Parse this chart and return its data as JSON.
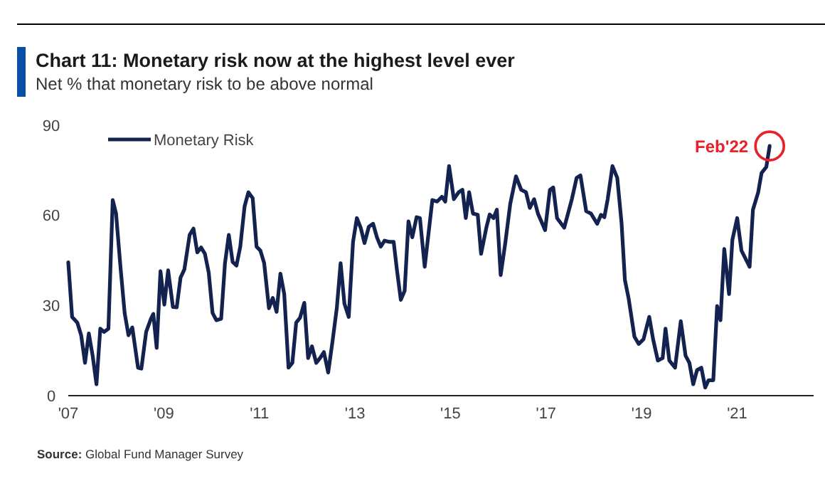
{
  "chart_data": {
    "type": "line",
    "title": "Chart 11: Monetary risk now at the highest level ever",
    "subtitle": "Net % that monetary risk to be above normal",
    "x": [
      2007.0,
      2007.08,
      2007.19,
      2007.27,
      2007.35,
      2007.43,
      2007.51,
      2007.59,
      2007.67,
      2007.75,
      2007.84,
      2007.93,
      2008.0,
      2008.09,
      2008.18,
      2008.26,
      2008.34,
      2008.46,
      2008.53,
      2008.63,
      2008.73,
      2008.78,
      2008.85,
      2008.93,
      2009.01,
      2009.09,
      2009.19,
      2009.27,
      2009.35,
      2009.43,
      2009.54,
      2009.62,
      2009.7,
      2009.78,
      2009.86,
      2009.94,
      2010.02,
      2010.1,
      2010.2,
      2010.28,
      2010.36,
      2010.44,
      2010.52,
      2010.6,
      2010.69,
      2010.77,
      2010.86,
      2010.94,
      2011.02,
      2011.1,
      2011.2,
      2011.28,
      2011.36,
      2011.44,
      2011.52,
      2011.61,
      2011.69,
      2011.77,
      2011.85,
      2011.94,
      2012.02,
      2012.1,
      2012.19,
      2012.27,
      2012.35,
      2012.44,
      2012.53,
      2012.62,
      2012.7,
      2012.78,
      2012.87,
      2012.96,
      2013.04,
      2013.12,
      2013.2,
      2013.29,
      2013.38,
      2013.46,
      2013.54,
      2013.62,
      2013.71,
      2013.81,
      2013.88,
      2013.96,
      2014.04,
      2014.12,
      2014.2,
      2014.29,
      2014.36,
      2014.46,
      2014.62,
      2014.72,
      2014.82,
      2014.89,
      2014.97,
      2015.07,
      2015.17,
      2015.25,
      2015.32,
      2015.39,
      2015.47,
      2015.57,
      2015.64,
      2015.75,
      2015.82,
      2015.9,
      2015.97,
      2016.05,
      2016.15,
      2016.25,
      2016.37,
      2016.48,
      2016.58,
      2016.66,
      2016.75,
      2016.83,
      2016.98,
      2017.08,
      2017.15,
      2017.23,
      2017.38,
      2017.54,
      2017.64,
      2017.72,
      2017.84,
      2017.94,
      2018.07,
      2018.15,
      2018.22,
      2018.29,
      2018.39,
      2018.49,
      2018.58,
      2018.65,
      2018.73,
      2018.85,
      2018.94,
      2019.04,
      2019.16,
      2019.24,
      2019.34,
      2019.44,
      2019.5,
      2019.58,
      2019.7,
      2019.82,
      2019.92,
      2020.0,
      2020.08,
      2020.16,
      2020.25,
      2020.33,
      2020.4,
      2020.5,
      2020.58,
      2020.65,
      2020.73,
      2020.83,
      2020.9,
      2021.0,
      2021.09,
      2021.26,
      2021.33,
      2021.44,
      2021.51,
      2021.61,
      2021.68
    ],
    "series": [
      {
        "name": "Monetary Risk",
        "color": "#13224f",
        "values": [
          44.4,
          26.2,
          24.3,
          20.1,
          10.9,
          20.7,
          13.3,
          3.8,
          22.3,
          21.2,
          22.3,
          65.1,
          60.6,
          43.3,
          27.5,
          20.1,
          22.7,
          9.3,
          9.0,
          21.2,
          25.6,
          27.2,
          15.9,
          41.4,
          30.3,
          41.7,
          29.5,
          29.4,
          39.3,
          42.0,
          53.5,
          55.6,
          47.7,
          49.3,
          47.2,
          40.9,
          27.5,
          25.1,
          25.6,
          44.1,
          53.5,
          44.5,
          43.3,
          49.6,
          63.0,
          67.7,
          65.7,
          49.6,
          48.3,
          44.1,
          29.1,
          32.5,
          27.9,
          40.6,
          33.8,
          9.3,
          10.9,
          24.3,
          25.9,
          30.9,
          12.5,
          16.4,
          10.9,
          12.5,
          14.5,
          7.7,
          18.0,
          29.1,
          44.1,
          30.6,
          26.2,
          51.2,
          59.1,
          55.9,
          50.8,
          56.2,
          57.2,
          52.7,
          49.6,
          51.6,
          51.2,
          51.2,
          41.7,
          31.9,
          34.9,
          58.0,
          52.7,
          59.4,
          59.1,
          42.9,
          65.1,
          64.6,
          66.2,
          64.6,
          76.4,
          65.4,
          67.7,
          68.5,
          59.1,
          67.7,
          60.6,
          60.2,
          47.2,
          55.9,
          60.3,
          59.1,
          61.9,
          40.1,
          51.2,
          63.8,
          73.0,
          68.5,
          67.7,
          62.5,
          65.4,
          60.6,
          55.1,
          68.5,
          69.3,
          59.1,
          55.9,
          65.4,
          72.5,
          73.3,
          61.4,
          60.6,
          57.2,
          60.2,
          59.4,
          65.4,
          76.4,
          72.5,
          57.5,
          38.5,
          32.2,
          19.6,
          17.2,
          18.8,
          26.2,
          18.8,
          11.7,
          12.5,
          22.3,
          11.7,
          9.3,
          24.8,
          13.3,
          10.9,
          3.8,
          8.5,
          9.3,
          2.7,
          5.1,
          5.1,
          29.8,
          25.1,
          48.8,
          33.8,
          51.9,
          59.1,
          48.3,
          42.9,
          61.9,
          67.7,
          74.1,
          76.1,
          83.1
        ]
      }
    ],
    "xlim": [
      2007,
      2022.6
    ],
    "xticks": [
      {
        "value": 2007,
        "label": "'07"
      },
      {
        "value": 2009,
        "label": "'09"
      },
      {
        "value": 2011,
        "label": "'11"
      },
      {
        "value": 2013,
        "label": "'13"
      },
      {
        "value": 2015,
        "label": "'15"
      },
      {
        "value": 2017,
        "label": "'17"
      },
      {
        "value": 2019,
        "label": "'19"
      },
      {
        "value": 2021,
        "label": "'21"
      }
    ],
    "ylim": [
      0,
      90
    ],
    "yticks": [
      0,
      30,
      60,
      90
    ],
    "grid": false,
    "legend": "top left",
    "line_style": "solid",
    "marker": "none",
    "annotations": [
      {
        "text": "Feb'22",
        "x": 2021.68,
        "y": 83.1
      },
      "Source: Global Fund Manager Survey"
    ]
  }
}
